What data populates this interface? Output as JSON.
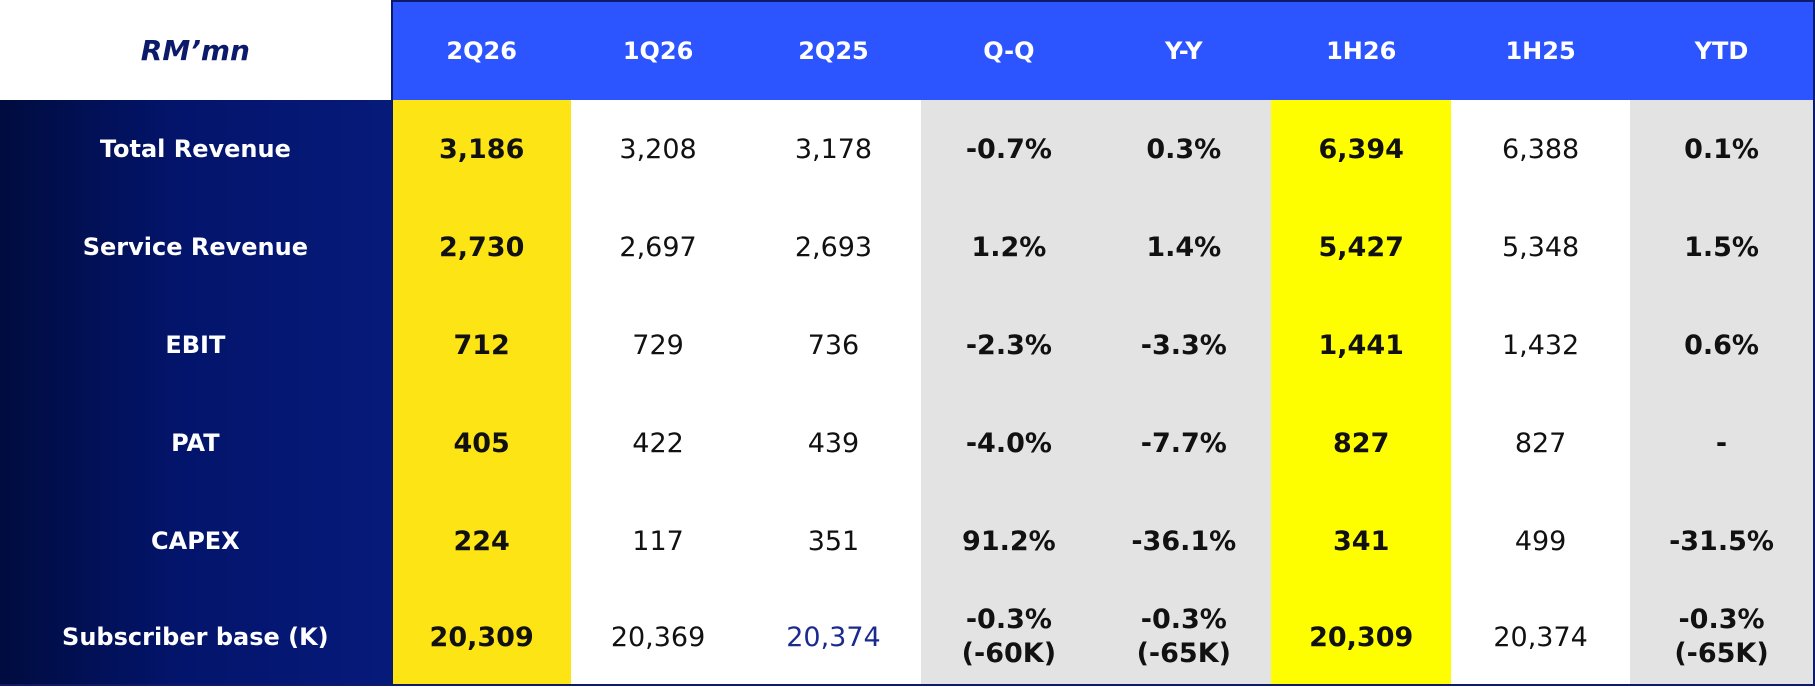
{
  "table": {
    "unit_label": "RM’mn",
    "columns": [
      "2Q26",
      "1Q26",
      "2Q25",
      "Q-Q",
      "Y-Y",
      "1H26",
      "1H25",
      "YTD"
    ],
    "rows": [
      {
        "label": "Total Revenue",
        "c2q26": "3,186",
        "c1q26": "3,208",
        "c2q25": "3,178",
        "qq": "-0.7%",
        "yy": "0.3%",
        "c1h26": "6,394",
        "c1h25": "6,388",
        "ytd": "0.1%"
      },
      {
        "label": "Service Revenue",
        "c2q26": "2,730",
        "c1q26": "2,697",
        "c2q25": "2,693",
        "qq": "1.2%",
        "yy": "1.4%",
        "c1h26": "5,427",
        "c1h25": "5,348",
        "ytd": "1.5%"
      },
      {
        "label": "EBIT",
        "c2q26": "712",
        "c1q26": "729",
        "c2q25": "736",
        "qq": "-2.3%",
        "yy": "-3.3%",
        "c1h26": "1,441",
        "c1h25": "1,432",
        "ytd": "0.6%"
      },
      {
        "label": "PAT",
        "c2q26": "405",
        "c1q26": "422",
        "c2q25": "439",
        "qq": "-4.0%",
        "yy": "-7.7%",
        "c1h26": "827",
        "c1h25": "827",
        "ytd": "-"
      },
      {
        "label": "CAPEX",
        "c2q26": "224",
        "c1q26": "117",
        "c2q25": "351",
        "qq": "91.2%",
        "yy": "-36.1%",
        "c1h26": "341",
        "c1h25": "499",
        "ytd": "-31.5%"
      },
      {
        "label": "Subscriber base (K)",
        "c2q26": "20,309",
        "c1q26": "20,369",
        "c2q25": "20,374",
        "qq": "-0.3%",
        "qq_sub": "(-60K)",
        "yy": "-0.3%",
        "yy_sub": "(-65K)",
        "c1h26": "20,309",
        "c1h25": "20,374",
        "ytd": "-0.3%",
        "ytd_sub": "(-65K)"
      }
    ]
  },
  "colors": {
    "header_blue": "#2c55ff",
    "label_navy": "#03146b",
    "highlight_2q26": "#fde414",
    "highlight_1h26": "#fefe00",
    "change_grey": "#e3e3e3"
  }
}
